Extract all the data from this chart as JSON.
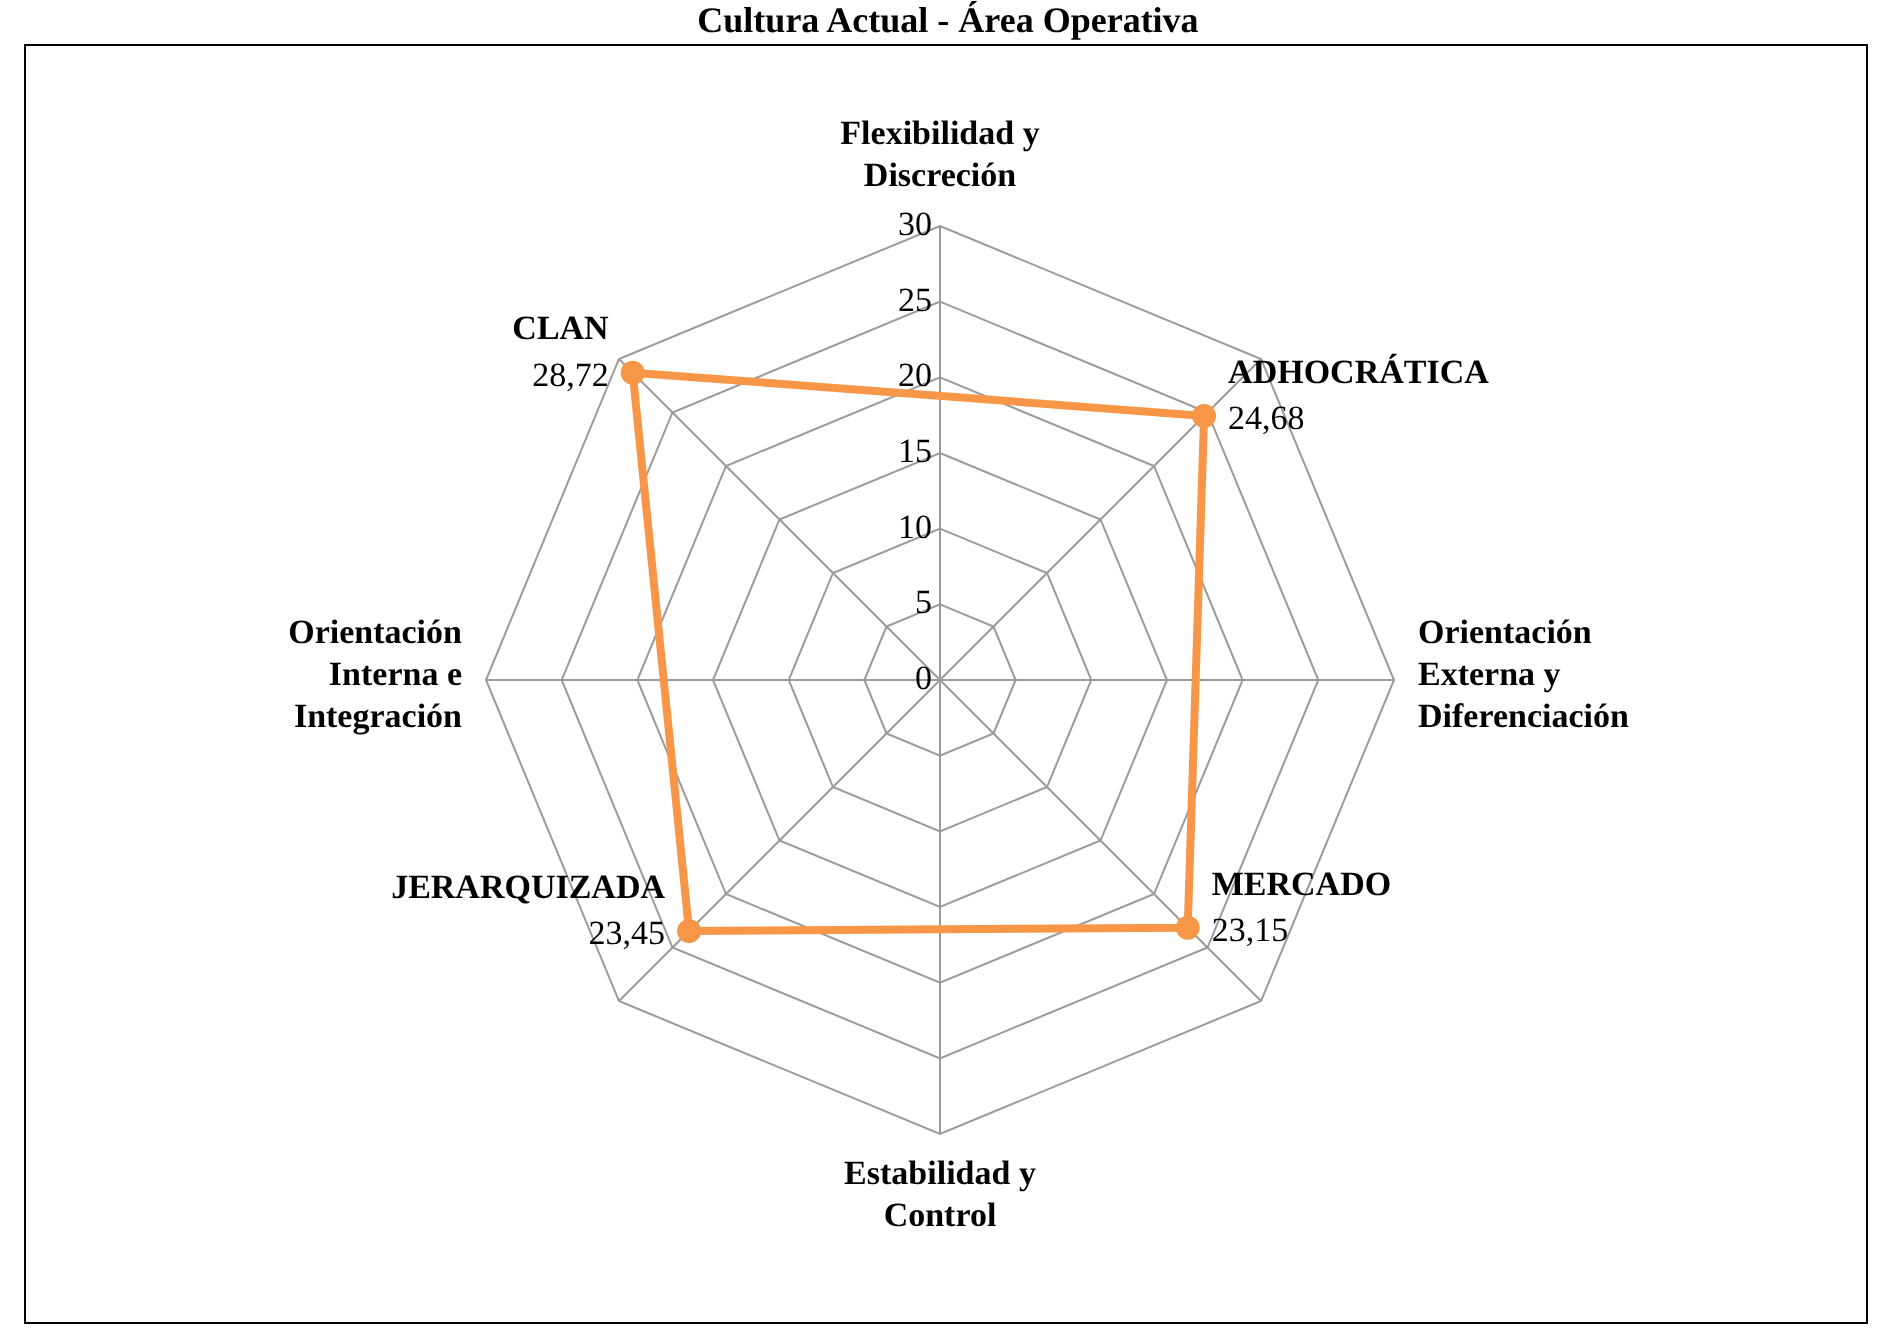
{
  "chart_data": {
    "type": "radar",
    "title": "Cultura Actual - Área Operativa",
    "categories": [
      "Flexibilidad y Discreción",
      "ADHOCRÁTICA",
      "Orientación Externa y Diferenciación",
      "MERCADO",
      "Estabilidad y Control",
      "JERARQUIZADA",
      "Orientación Interna e Integración",
      "CLAN"
    ],
    "series": [
      {
        "color": "#f79646",
        "values": [
          null,
          24.68,
          null,
          23.15,
          null,
          23.45,
          null,
          28.72
        ],
        "value_labels": [
          null,
          "24,68",
          null,
          "23,15",
          null,
          "23,45",
          null,
          "28,72"
        ]
      }
    ],
    "ylim": [
      0,
      30
    ],
    "yticks": [
      0,
      5,
      10,
      15,
      20,
      25,
      30
    ],
    "grid": true,
    "legend": false,
    "marker": "circle",
    "line_style": "solid"
  }
}
